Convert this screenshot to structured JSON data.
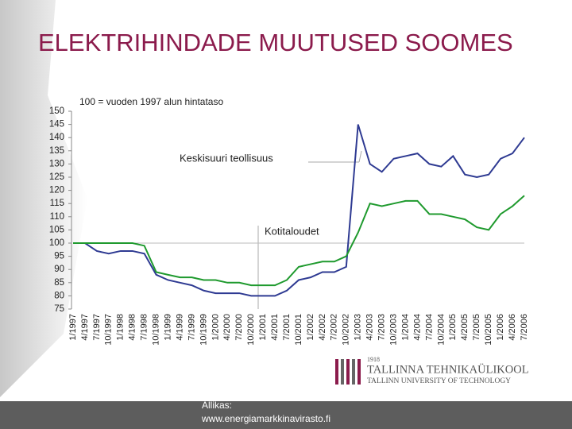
{
  "title": "ELEKTRIHINDADE MUUTUSED SOOMES",
  "chart_data": {
    "type": "line",
    "subtitle": "100 = vuoden 1997 alun hintataso",
    "categories": [
      "1/1997",
      "4/1997",
      "7/1997",
      "10/1997",
      "1/1998",
      "4/1998",
      "7/1998",
      "10/1998",
      "1/1999",
      "4/1999",
      "7/1999",
      "10/1999",
      "1/2000",
      "4/2000",
      "7/2000",
      "10/2000",
      "1/2001",
      "4/2001",
      "7/2001",
      "10/2001",
      "1/2002",
      "4/2002",
      "7/2002",
      "10/2002",
      "1/2003",
      "4/2003",
      "7/2003",
      "10/2003",
      "1/2004",
      "4/2004",
      "7/2004",
      "10/2004",
      "1/2005",
      "4/2005",
      "7/2005",
      "10/2005",
      "1/2006",
      "4/2006",
      "7/2006"
    ],
    "series": [
      {
        "name": "Keskisuuri teollisuus",
        "color": "#2e3a92",
        "values": [
          100,
          100,
          97,
          96,
          97,
          97,
          96,
          88,
          86,
          85,
          84,
          82,
          81,
          81,
          81,
          80,
          80,
          80,
          82,
          86,
          87,
          89,
          89,
          91,
          145,
          130,
          127,
          132,
          133,
          134,
          130,
          129,
          133,
          126,
          125,
          126,
          132,
          134,
          140
        ]
      },
      {
        "name": "Kotitaloudet",
        "color": "#1f9a2e",
        "values": [
          100,
          100,
          100,
          100,
          100,
          100,
          99,
          89,
          88,
          87,
          87,
          86,
          86,
          85,
          85,
          84,
          84,
          84,
          86,
          91,
          92,
          93,
          93,
          95,
          104,
          115,
          114,
          115,
          116,
          116,
          111,
          111,
          110,
          109,
          106,
          105,
          111,
          114,
          118
        ]
      }
    ],
    "ylim": [
      75,
      150
    ],
    "yticks": [
      75,
      80,
      85,
      90,
      95,
      100,
      105,
      110,
      115,
      120,
      125,
      130,
      135,
      140,
      145,
      150
    ]
  },
  "footer": {
    "source_label": "Allikas:",
    "source_url": "www.energiamarkkinavirasto.fi"
  },
  "logo": {
    "year": "1918",
    "name": "TALLINNA TEHNIKAÜLIKOOL",
    "name_en": "TALLINN UNIVERSITY OF TECHNOLOGY"
  }
}
